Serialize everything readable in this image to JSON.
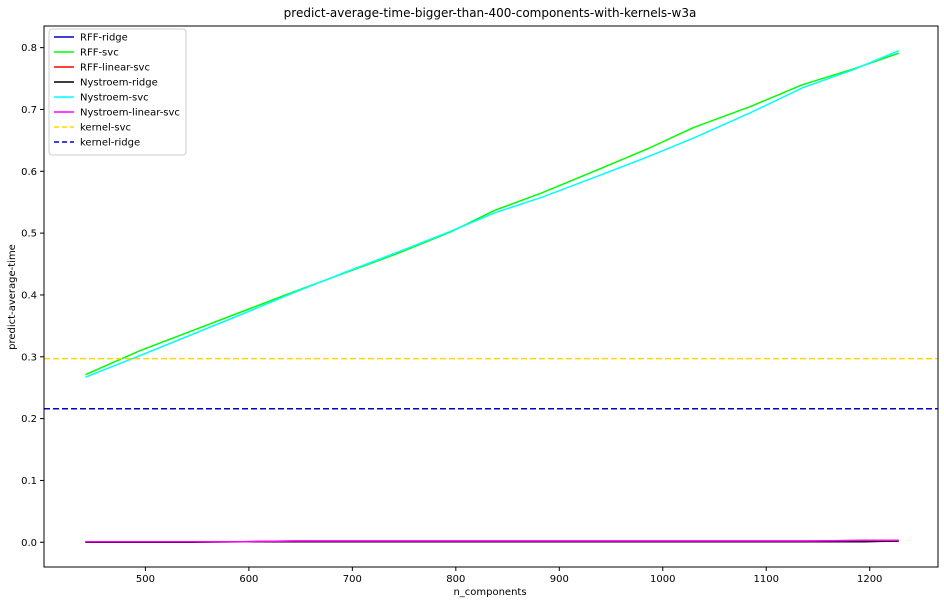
{
  "chart_data": {
    "type": "line",
    "title": "predict-average-time-bigger-than-400-components-with-kernels-w3a",
    "xlabel": "n_components",
    "ylabel": "predict-average-time",
    "xlim": [
      402,
      1266
    ],
    "ylim": [
      -0.04,
      0.835
    ],
    "xticks": [
      500,
      600,
      700,
      800,
      900,
      1000,
      1100,
      1200
    ],
    "yticks": [
      0.0,
      0.1,
      0.2,
      0.3,
      0.4,
      0.5,
      0.6,
      0.7,
      0.8
    ],
    "ytick_labels": [
      "0.0",
      "0.1",
      "0.2",
      "0.3",
      "0.4",
      "0.5",
      "0.6",
      "0.7",
      "0.8"
    ],
    "grid": false,
    "legend_position": "upper-left",
    "series": [
      {
        "name": "RFF-ridge",
        "color": "#0000cc",
        "style": "solid",
        "x": [
          442,
          495,
          545,
          595,
          645,
          695,
          745,
          795,
          845,
          895,
          945,
          995,
          1045,
          1095,
          1145,
          1195,
          1228
        ],
        "y": [
          0.001,
          0.001,
          0.001,
          0.001,
          0.001,
          0.001,
          0.001,
          0.001,
          0.001,
          0.001,
          0.001,
          0.001,
          0.001,
          0.001,
          0.001,
          0.002,
          0.002
        ]
      },
      {
        "name": "RFF-svc",
        "color": "#00ff00",
        "style": "solid",
        "x": [
          442,
          495,
          545,
          595,
          645,
          695,
          745,
          795,
          838,
          883,
          935,
          985,
          1030,
          1085,
          1135,
          1185,
          1228
        ],
        "y": [
          0.271,
          0.31,
          0.342,
          0.374,
          0.406,
          0.437,
          0.468,
          0.502,
          0.537,
          0.565,
          0.601,
          0.636,
          0.671,
          0.705,
          0.74,
          0.766,
          0.791
        ]
      },
      {
        "name": "RFF-linear-svc",
        "color": "#ff0000",
        "style": "solid",
        "x": [
          442,
          495,
          545,
          595,
          645,
          695,
          745,
          795,
          845,
          895,
          945,
          995,
          1045,
          1095,
          1145,
          1195,
          1228
        ],
        "y": [
          0.001,
          0.001,
          0.001,
          0.001,
          0.002,
          0.002,
          0.002,
          0.002,
          0.002,
          0.002,
          0.002,
          0.002,
          0.002,
          0.002,
          0.002,
          0.003,
          0.003
        ]
      },
      {
        "name": "Nystroem-ridge",
        "color": "#000000",
        "style": "solid",
        "x": [
          442,
          495,
          545,
          595,
          645,
          695,
          745,
          795,
          845,
          895,
          945,
          995,
          1045,
          1095,
          1145,
          1195,
          1228
        ],
        "y": [
          0.0,
          0.0,
          0.0,
          0.001,
          0.001,
          0.001,
          0.001,
          0.001,
          0.001,
          0.001,
          0.001,
          0.001,
          0.001,
          0.001,
          0.001,
          0.001,
          0.002
        ]
      },
      {
        "name": "Nystroem-svc",
        "color": "#00ffff",
        "style": "solid",
        "x": [
          442,
          495,
          545,
          595,
          645,
          695,
          745,
          795,
          838,
          883,
          935,
          985,
          1030,
          1085,
          1135,
          1185,
          1228
        ],
        "y": [
          0.267,
          0.302,
          0.336,
          0.37,
          0.405,
          0.438,
          0.47,
          0.503,
          0.533,
          0.558,
          0.591,
          0.623,
          0.654,
          0.695,
          0.735,
          0.765,
          0.795
        ]
      },
      {
        "name": "Nystroem-linear-svc",
        "color": "#ff00ff",
        "style": "solid",
        "x": [
          442,
          495,
          545,
          595,
          645,
          695,
          745,
          795,
          845,
          895,
          945,
          995,
          1045,
          1095,
          1145,
          1195,
          1228
        ],
        "y": [
          0.001,
          0.001,
          0.001,
          0.001,
          0.002,
          0.002,
          0.002,
          0.002,
          0.002,
          0.002,
          0.002,
          0.002,
          0.002,
          0.002,
          0.002,
          0.003,
          0.003
        ]
      },
      {
        "name": "kernel-svc",
        "color": "#ffd700",
        "style": "dashed",
        "horizontal": true,
        "y": 0.297
      },
      {
        "name": "kernel-ridge",
        "color": "#0000cc",
        "style": "dashed",
        "horizontal": true,
        "y": 0.216
      }
    ]
  }
}
